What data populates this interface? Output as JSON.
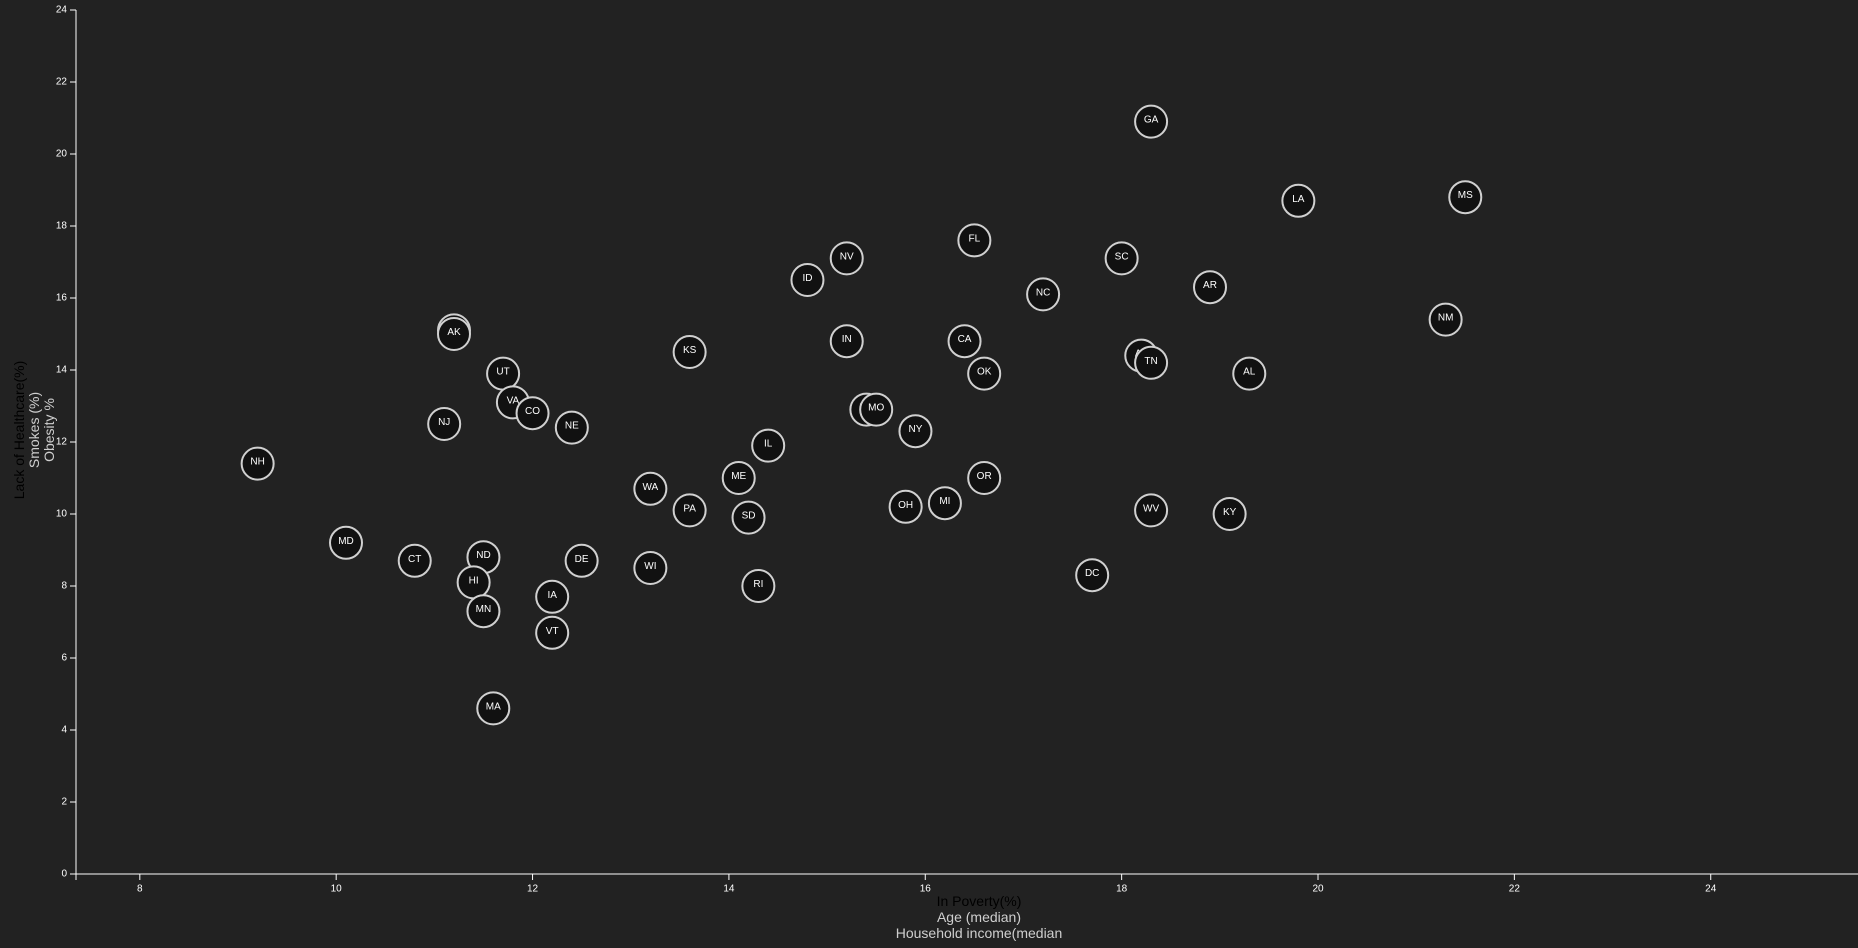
{
  "chart_data": {
    "type": "scatter",
    "xlabels": [
      {
        "text": "In Poverty(%)",
        "active": true
      },
      {
        "text": "Age (median)",
        "active": false
      },
      {
        "text": "Household income(median",
        "active": false
      }
    ],
    "ylabels": [
      {
        "text": "Lack of Healthcare(%)",
        "active": true
      },
      {
        "text": "Smokes (%)",
        "active": false
      },
      {
        "text": "Obesity %",
        "active": false
      }
    ],
    "xlim": [
      7.35,
      25.5
    ],
    "ylim": [
      0,
      24
    ],
    "xticks": [
      8,
      10,
      12,
      14,
      16,
      18,
      20,
      22,
      24
    ],
    "yticks": [
      0,
      2,
      4,
      6,
      8,
      10,
      12,
      14,
      16,
      18,
      20,
      22,
      24
    ],
    "points": [
      {
        "abbr": "GA",
        "x": 18.3,
        "y": 20.9
      },
      {
        "abbr": "LA",
        "x": 19.8,
        "y": 18.7
      },
      {
        "abbr": "MS",
        "x": 21.5,
        "y": 18.8
      },
      {
        "abbr": "FL",
        "x": 16.5,
        "y": 17.6
      },
      {
        "abbr": "SC",
        "x": 18.0,
        "y": 17.1
      },
      {
        "abbr": "NV",
        "x": 15.2,
        "y": 17.1
      },
      {
        "abbr": "ID",
        "x": 14.8,
        "y": 16.5
      },
      {
        "abbr": "AR",
        "x": 18.9,
        "y": 16.3
      },
      {
        "abbr": "NC",
        "x": 17.2,
        "y": 16.1
      },
      {
        "abbr": "NM",
        "x": 21.3,
        "y": 15.4
      },
      {
        "abbr": "WY",
        "x": 11.2,
        "y": 15.1
      },
      {
        "abbr": "AK",
        "x": 11.2,
        "y": 15.0
      },
      {
        "abbr": "IN",
        "x": 15.2,
        "y": 14.8
      },
      {
        "abbr": "CA",
        "x": 16.4,
        "y": 14.8
      },
      {
        "abbr": "KS",
        "x": 13.6,
        "y": 14.5
      },
      {
        "abbr": "AZ",
        "x": 18.2,
        "y": 14.4
      },
      {
        "abbr": "TN",
        "x": 18.3,
        "y": 14.2
      },
      {
        "abbr": "UT",
        "x": 11.7,
        "y": 13.9
      },
      {
        "abbr": "OK",
        "x": 16.6,
        "y": 13.9
      },
      {
        "abbr": "AL",
        "x": 19.3,
        "y": 13.9
      },
      {
        "abbr": "VA",
        "x": 11.8,
        "y": 13.1
      },
      {
        "abbr": "MT",
        "x": 15.4,
        "y": 12.9
      },
      {
        "abbr": "MO",
        "x": 15.5,
        "y": 12.9
      },
      {
        "abbr": "CO",
        "x": 12.0,
        "y": 12.8
      },
      {
        "abbr": "NJ",
        "x": 11.1,
        "y": 12.5
      },
      {
        "abbr": "NE",
        "x": 12.4,
        "y": 12.4
      },
      {
        "abbr": "NY",
        "x": 15.9,
        "y": 12.3
      },
      {
        "abbr": "IL",
        "x": 14.4,
        "y": 11.9
      },
      {
        "abbr": "NH",
        "x": 9.2,
        "y": 11.4
      },
      {
        "abbr": "ME",
        "x": 14.1,
        "y": 11.0
      },
      {
        "abbr": "OR",
        "x": 16.6,
        "y": 11.0
      },
      {
        "abbr": "WA",
        "x": 13.2,
        "y": 10.7
      },
      {
        "abbr": "MI",
        "x": 16.2,
        "y": 10.3
      },
      {
        "abbr": "OH",
        "x": 15.8,
        "y": 10.2
      },
      {
        "abbr": "PA",
        "x": 13.6,
        "y": 10.1
      },
      {
        "abbr": "WV",
        "x": 18.3,
        "y": 10.1
      },
      {
        "abbr": "KY",
        "x": 19.1,
        "y": 10.0
      },
      {
        "abbr": "SD",
        "x": 14.2,
        "y": 9.9
      },
      {
        "abbr": "MD",
        "x": 10.1,
        "y": 9.2
      },
      {
        "abbr": "ND",
        "x": 11.5,
        "y": 8.8
      },
      {
        "abbr": "CT",
        "x": 10.8,
        "y": 8.7
      },
      {
        "abbr": "DE",
        "x": 12.5,
        "y": 8.7
      },
      {
        "abbr": "WI",
        "x": 13.2,
        "y": 8.5
      },
      {
        "abbr": "DC",
        "x": 17.7,
        "y": 8.3
      },
      {
        "abbr": "HI",
        "x": 11.4,
        "y": 8.1
      },
      {
        "abbr": "RI",
        "x": 14.3,
        "y": 8.0
      },
      {
        "abbr": "IA",
        "x": 12.2,
        "y": 7.7
      },
      {
        "abbr": "MN",
        "x": 11.5,
        "y": 7.3
      },
      {
        "abbr": "VT",
        "x": 12.2,
        "y": 6.7
      },
      {
        "abbr": "MA",
        "x": 11.6,
        "y": 4.6
      }
    ]
  }
}
